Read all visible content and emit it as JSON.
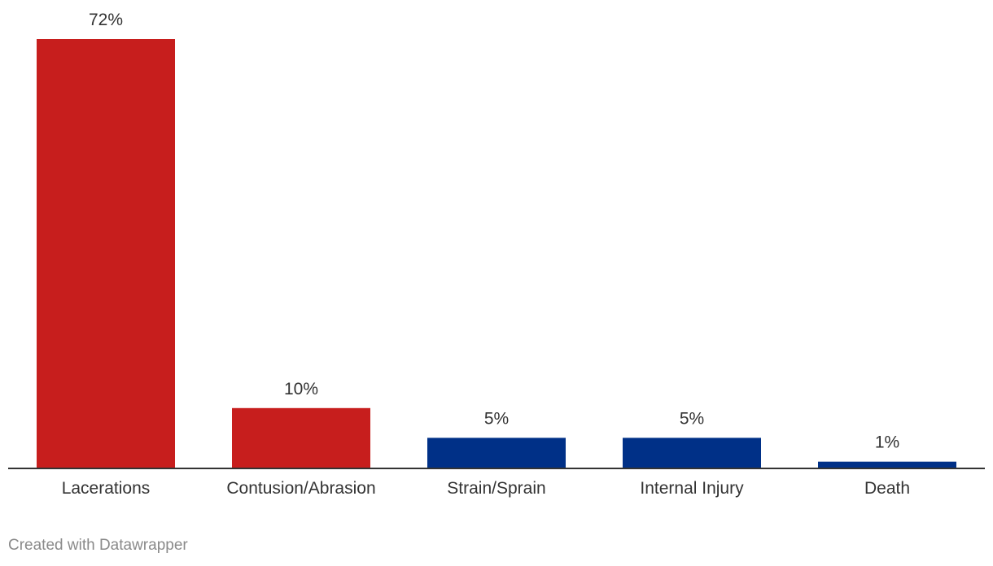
{
  "chart_data": {
    "type": "bar",
    "categories": [
      "Lacerations",
      "Contusion/Abrasion",
      "Strain/Sprain",
      "Internal Injury",
      "Death"
    ],
    "values": [
      72,
      10,
      5,
      5,
      1
    ],
    "value_labels": [
      "72%",
      "10%",
      "5%",
      "5%",
      "1%"
    ],
    "bar_colors": [
      "#c71e1d",
      "#c71e1d",
      "#003087",
      "#003087",
      "#003087"
    ],
    "ylim": [
      0,
      72
    ],
    "grid": false,
    "legend": "none"
  },
  "colors": {
    "red": "#c71e1d",
    "blue": "#003087",
    "axis": "#333333",
    "footer_text": "#8a8a8a"
  },
  "footer": {
    "credit": "Created with Datawrapper"
  }
}
